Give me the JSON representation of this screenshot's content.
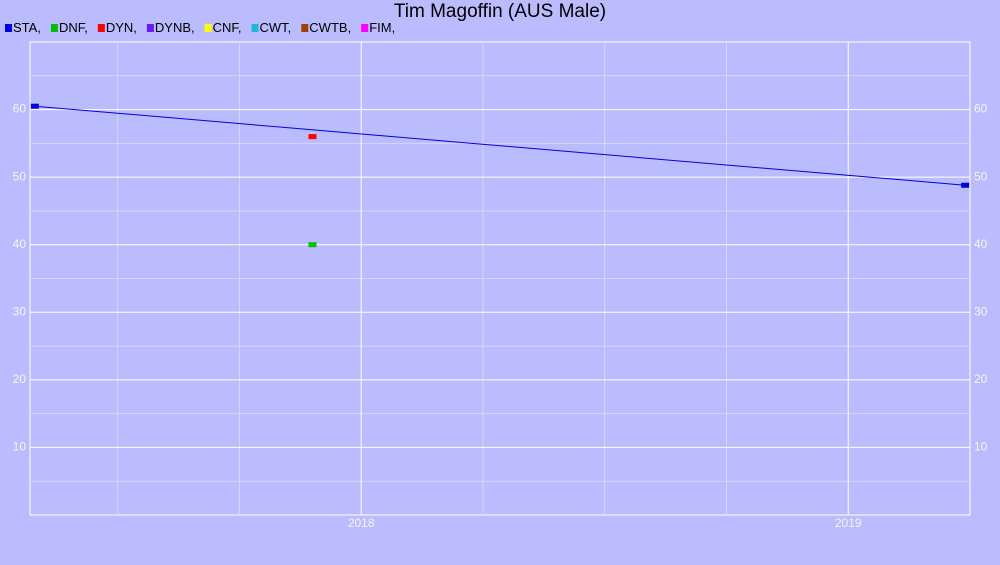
{
  "chart_data": {
    "type": "line",
    "title": "Tim Magoffin (AUS Male)",
    "series": [
      {
        "name": "STA,",
        "color": "#0000e0",
        "x": [
          2017.33,
          2019.24
        ],
        "values": [
          60.5,
          48.8
        ],
        "line": true
      },
      {
        "name": "DNF,",
        "color": "#00c000",
        "x": [
          2017.9
        ],
        "values": [
          40
        ],
        "line": false
      },
      {
        "name": "DYN,",
        "color": "#ff0000",
        "x": [
          2017.9
        ],
        "values": [
          56
        ],
        "line": false
      },
      {
        "name": "DYNB,",
        "color": "#6a1bef",
        "x": [],
        "values": [],
        "line": false
      },
      {
        "name": "CNF,",
        "color": "#ffff00",
        "x": [],
        "values": [],
        "line": false
      },
      {
        "name": "CWT,",
        "color": "#20b8d8",
        "x": [],
        "values": [],
        "line": false
      },
      {
        "name": "CWTB,",
        "color": "#a04000",
        "x": [],
        "values": [],
        "line": false
      },
      {
        "name": "FIM,",
        "color": "#ff00ff",
        "x": [],
        "values": [],
        "line": false
      }
    ],
    "xlim": [
      2017.32,
      2019.25
    ],
    "xticks": [
      2018,
      2019
    ],
    "minor_xticks": [
      2017.5,
      2017.75,
      2018.25,
      2018.5,
      2018.75
    ],
    "ylim": [
      0,
      70
    ],
    "yticks": [
      10,
      20,
      30,
      40,
      50,
      60
    ],
    "minor_yticks": [
      5,
      15,
      25,
      35,
      45,
      55,
      65
    ],
    "grid": true,
    "legend": "top-left"
  }
}
